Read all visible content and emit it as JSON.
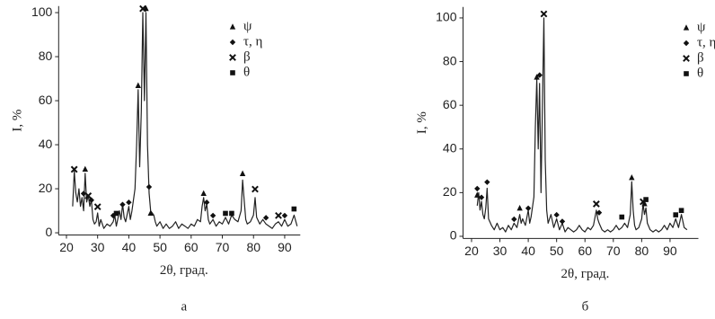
{
  "chart_data": [
    {
      "type": "line",
      "caption": "а",
      "xlabel": "2θ, град.",
      "ylabel": "I, %",
      "color": "#222",
      "xlim": [
        17.5,
        95
      ],
      "ylim": [
        -1,
        103
      ],
      "xticks": [
        20,
        30,
        40,
        50,
        60,
        70,
        80,
        90
      ],
      "yticks": [
        0,
        20,
        40,
        60,
        80,
        100
      ],
      "legend_position": "upper right",
      "x": [
        22,
        22.5,
        23,
        23.5,
        24,
        24.5,
        25,
        25.5,
        26,
        26.5,
        27,
        27.5,
        28,
        28.5,
        29,
        29.5,
        30,
        30.5,
        31,
        32,
        33,
        34,
        35,
        35.5,
        36,
        37,
        37.5,
        38,
        38.5,
        39,
        40,
        40.5,
        41,
        42,
        42.5,
        43,
        43.5,
        44,
        44.5,
        45,
        45.5,
        46,
        46.5,
        47,
        48,
        48.5,
        49,
        50,
        51,
        52,
        53,
        54,
        55,
        56,
        57,
        58,
        59,
        60,
        61,
        62,
        63,
        63.5,
        64,
        64.5,
        65,
        65.5,
        66,
        67,
        68,
        69,
        70,
        71,
        72,
        73,
        74,
        75,
        76,
        76.5,
        77,
        77.5,
        78,
        79,
        80,
        80.5,
        81,
        82,
        83,
        84,
        85,
        86,
        87,
        88,
        89,
        90,
        91,
        92,
        93,
        94
      ],
      "values": [
        12,
        28,
        18,
        14,
        20,
        12,
        16,
        10,
        27,
        14,
        17,
        12,
        15,
        6,
        4,
        5,
        9,
        3,
        6,
        2,
        4,
        3,
        5,
        8,
        3,
        10,
        6,
        13,
        7,
        5,
        12,
        6,
        10,
        20,
        40,
        65,
        30,
        55,
        100,
        60,
        100,
        40,
        18,
        10,
        8,
        5,
        3,
        5,
        2,
        4,
        2,
        3,
        5,
        2,
        4,
        3,
        2,
        4,
        3,
        6,
        5,
        12,
        16,
        10,
        13,
        6,
        4,
        6,
        3,
        5,
        4,
        7,
        4,
        8,
        6,
        5,
        10,
        24,
        15,
        6,
        4,
        5,
        8,
        16,
        7,
        4,
        6,
        4,
        3,
        2,
        4,
        5,
        3,
        6,
        3,
        4,
        8,
        3
      ],
      "phases": [
        {
          "name": "ψ",
          "marker": "triangle",
          "x": [
            26,
            43,
            45.5,
            47,
            64,
            76.5
          ],
          "y": [
            28,
            66,
            101,
            8,
            17,
            26
          ]
        },
        {
          "name": "τ, η",
          "marker": "diamond",
          "x": [
            25.5,
            28,
            35,
            38,
            40,
            46.5,
            65,
            67,
            84,
            90
          ],
          "y": [
            17,
            14,
            7,
            12,
            13,
            20,
            13,
            7,
            6,
            7
          ]
        },
        {
          "name": "β",
          "marker": "cross",
          "x": [
            22.5,
            27,
            30,
            44.5,
            80.5,
            88
          ],
          "y": [
            28,
            16,
            11,
            101,
            19,
            7
          ]
        },
        {
          "name": "θ",
          "marker": "square",
          "x": [
            36,
            71,
            73,
            93
          ],
          "y": [
            8,
            8,
            8,
            10
          ]
        }
      ]
    },
    {
      "type": "line",
      "caption": "б",
      "xlabel": "2θ, град.",
      "ylabel": "I, %",
      "color": "#222",
      "xlim": [
        17,
        100
      ],
      "ylim": [
        -1,
        105
      ],
      "xticks": [
        20,
        30,
        40,
        50,
        60,
        70,
        80,
        90
      ],
      "yticks": [
        0,
        20,
        40,
        60,
        80,
        100
      ],
      "legend_position": "upper right",
      "x": [
        22,
        22.5,
        23,
        23.5,
        24,
        24.5,
        25,
        25.5,
        26,
        27,
        28,
        29,
        30,
        31,
        32,
        33,
        34,
        35,
        36,
        37,
        37.5,
        38,
        39,
        40,
        40.5,
        41,
        42,
        42.5,
        43,
        43.5,
        44,
        44.5,
        45,
        45.5,
        46,
        46.5,
        47,
        48,
        49,
        50,
        51,
        52,
        53,
        54,
        55,
        56,
        57,
        58,
        59,
        60,
        61,
        62,
        63,
        64,
        64.5,
        65,
        66,
        67,
        68,
        69,
        70,
        71,
        72,
        73,
        74,
        75,
        76,
        76.5,
        77,
        77.5,
        78,
        79,
        80,
        80.5,
        81,
        81.5,
        82,
        83,
        84,
        85,
        86,
        87,
        88,
        89,
        90,
        91,
        92,
        93,
        94,
        95,
        96
      ],
      "values": [
        14,
        20,
        12,
        16,
        10,
        8,
        13,
        22,
        8,
        5,
        3,
        6,
        3,
        4,
        2,
        5,
        3,
        6,
        4,
        10,
        6,
        8,
        5,
        12,
        6,
        9,
        18,
        50,
        72,
        40,
        70,
        20,
        60,
        100,
        35,
        12,
        6,
        10,
        4,
        8,
        3,
        6,
        2,
        4,
        3,
        2,
        3,
        5,
        3,
        2,
        4,
        3,
        5,
        12,
        8,
        6,
        3,
        2,
        3,
        2,
        3,
        5,
        3,
        4,
        6,
        4,
        10,
        25,
        12,
        5,
        3,
        4,
        8,
        15,
        10,
        13,
        6,
        3,
        2,
        3,
        2,
        3,
        5,
        3,
        6,
        4,
        8,
        4,
        10,
        4,
        3
      ],
      "phases": [
        {
          "name": "ψ",
          "marker": "triangle",
          "x": [
            22,
            37,
            43,
            76.5,
            81
          ],
          "y": [
            18,
            12,
            72,
            26,
            14
          ]
        },
        {
          "name": "τ, η",
          "marker": "diamond",
          "x": [
            22,
            23.5,
            25.5,
            35,
            40,
            44,
            50,
            52,
            65
          ],
          "y": [
            21,
            17,
            24,
            7,
            12,
            73,
            9,
            6,
            10
          ]
        },
        {
          "name": "β",
          "marker": "cross",
          "x": [
            45.5,
            64,
            80.5
          ],
          "y": [
            101,
            14,
            15
          ]
        },
        {
          "name": "θ",
          "marker": "square",
          "x": [
            73,
            81.5,
            92,
            94
          ],
          "y": [
            8,
            16,
            9,
            11
          ]
        }
      ]
    }
  ]
}
